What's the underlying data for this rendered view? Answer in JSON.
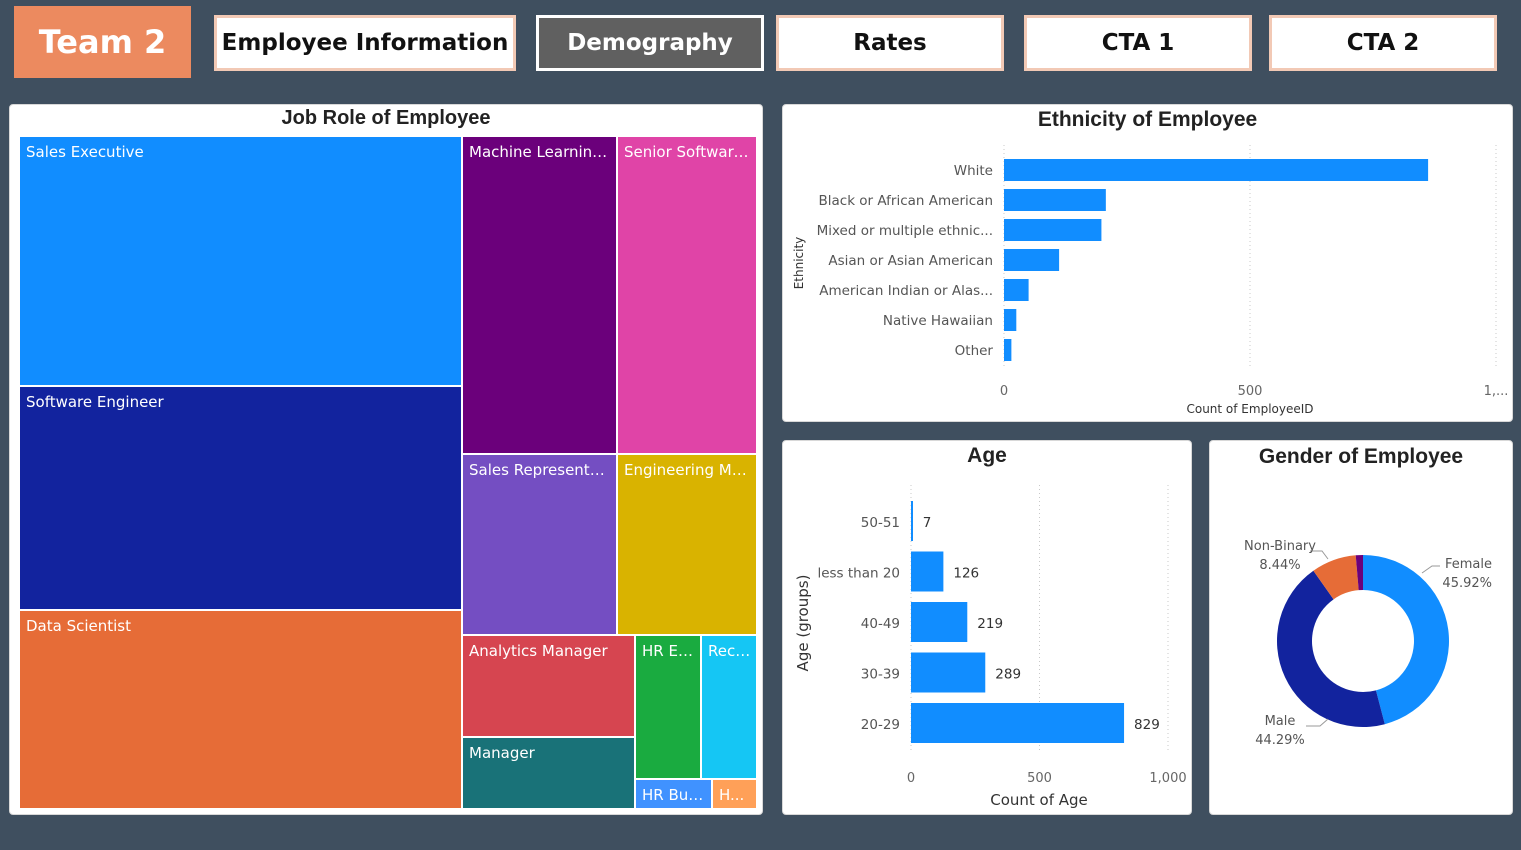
{
  "nav": {
    "team_label": "Team 2",
    "buttons": [
      {
        "label": "Employee Information"
      },
      {
        "label": "Demography"
      },
      {
        "label": "Rates"
      },
      {
        "label": "CTA 1"
      },
      {
        "label": "CTA 2"
      }
    ],
    "active": "Demography"
  },
  "job_role": {
    "title": "Job Role of Employee",
    "tiles": [
      {
        "label": "Sales Executive",
        "color": "#118dff"
      },
      {
        "label": "Software Engineer",
        "color": "#12239e"
      },
      {
        "label": "Data Scientist",
        "color": "#e66c37"
      },
      {
        "label": "Machine Learning ...",
        "color": "#6b007b"
      },
      {
        "label": "Senior Software ...",
        "color": "#e044a7"
      },
      {
        "label": "Sales Representati...",
        "color": "#744ec2"
      },
      {
        "label": "Engineering Ma...",
        "color": "#d9b300"
      },
      {
        "label": "Analytics Manager",
        "color": "#d64550"
      },
      {
        "label": "HR Ex...",
        "color": "#1aab40"
      },
      {
        "label": "Recr...",
        "color": "#15c6f4"
      },
      {
        "label": "Manager",
        "color": "#197278"
      },
      {
        "label": "HR Bus...",
        "color": "#4092ff"
      },
      {
        "label": "H...",
        "color": "#ffa058"
      }
    ]
  },
  "ethnicity": {
    "title": "Ethnicity of Employee",
    "chart_data": {
      "type": "bar",
      "orientation": "horizontal",
      "title": "Ethnicity of Employee",
      "ylabel": "Ethnicity",
      "xlabel": "Count of EmployeeID",
      "categories": [
        "White",
        "Black or African American",
        "Mixed or multiple ethnic...",
        "Asian or Asian American",
        "American Indian or Alas...",
        "Native Hawaiian",
        "Other"
      ],
      "values": [
        862,
        207,
        198,
        112,
        50,
        25,
        15
      ],
      "xlim": [
        0,
        1000
      ],
      "x_ticks": [
        "0",
        "500",
        "1,..."
      ],
      "color": "#118dff"
    }
  },
  "age": {
    "title": "Age",
    "chart_data": {
      "type": "bar",
      "orientation": "horizontal",
      "title": "Age",
      "ylabel": "Age (groups)",
      "xlabel": "Count of Age",
      "categories": [
        "50-51",
        "less than 20",
        "40-49",
        "30-39",
        "20-29"
      ],
      "values": [
        7,
        126,
        219,
        289,
        829
      ],
      "xlim": [
        0,
        1000
      ],
      "x_ticks": [
        "0",
        "500",
        "1,000"
      ],
      "color": "#118dff"
    }
  },
  "gender": {
    "title": "Gender of Employee",
    "chart_data": {
      "type": "pie",
      "donut": true,
      "title": "Gender of Employee",
      "slices": [
        {
          "name": "Female",
          "percent": 45.92,
          "label": "45.92%",
          "color": "#118dff"
        },
        {
          "name": "Male",
          "percent": 44.29,
          "label": "44.29%",
          "color": "#12239e"
        },
        {
          "name": "Non-Binary",
          "percent": 8.44,
          "label": "8.44%",
          "color": "#e66c37"
        },
        {
          "name": "",
          "percent": 1.35,
          "label": "",
          "color": "#6b007b"
        }
      ]
    }
  }
}
